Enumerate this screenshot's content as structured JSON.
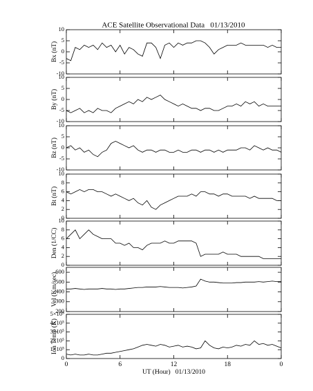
{
  "chart_data": [
    {
      "type": "line",
      "title": "ACE Satellite Observational Data   01/13/2010",
      "ylabel": "Bx (nT)",
      "color": "#000000",
      "xlim": [
        0,
        24
      ],
      "ylim": [
        -10,
        10
      ],
      "yticks": [
        10,
        5,
        0,
        -5,
        -10
      ],
      "x": [
        0,
        0.5,
        1,
        1.5,
        2,
        2.5,
        3,
        3.5,
        4,
        4.5,
        5,
        5.5,
        6,
        6.5,
        7,
        7.5,
        8,
        8.5,
        9,
        9.5,
        10,
        10.5,
        11,
        11.5,
        12,
        12.5,
        13,
        13.5,
        14,
        14.5,
        15,
        15.5,
        16,
        16.5,
        17,
        17.5,
        18,
        18.5,
        19,
        19.5,
        20,
        20.5,
        21,
        21.5,
        22,
        22.5,
        23,
        23.5,
        24
      ],
      "values": [
        -3,
        -4,
        2,
        1,
        3,
        2,
        3,
        1,
        4,
        2,
        3,
        0,
        3,
        -1,
        2,
        1,
        -1,
        -2,
        4,
        4,
        2,
        -3,
        3,
        4,
        2,
        4,
        3,
        4,
        4,
        5,
        5,
        4,
        2,
        -1,
        1,
        2,
        3,
        3,
        3,
        4,
        3,
        3,
        3,
        3,
        3,
        2,
        3,
        2,
        2
      ]
    },
    {
      "type": "line",
      "ylabel": "By (nT)",
      "color": "#000000",
      "xlim": [
        0,
        24
      ],
      "ylim": [
        -10,
        10
      ],
      "yticks": [
        10,
        5,
        0,
        -5,
        -10
      ],
      "x": [
        0,
        0.5,
        1,
        1.5,
        2,
        2.5,
        3,
        3.5,
        4,
        4.5,
        5,
        5.5,
        6,
        6.5,
        7,
        7.5,
        8,
        8.5,
        9,
        9.5,
        10,
        10.5,
        11,
        11.5,
        12,
        12.5,
        13,
        13.5,
        14,
        14.5,
        15,
        15.5,
        16,
        16.5,
        17,
        17.5,
        18,
        18.5,
        19,
        19.5,
        20,
        20.5,
        21,
        21.5,
        22,
        22.5,
        23,
        23.5,
        24
      ],
      "values": [
        -5,
        -6,
        -5,
        -4,
        -6,
        -5,
        -6,
        -4,
        -5,
        -5,
        -6,
        -4,
        -3,
        -2,
        -1,
        -2,
        0,
        -1,
        1,
        0,
        1,
        2,
        0,
        -1,
        -2,
        -3,
        -2,
        -3,
        -4,
        -4,
        -5,
        -4,
        -4,
        -5,
        -5,
        -4,
        -3,
        -3,
        -2,
        -3,
        -1,
        -2,
        -1,
        -3,
        -2,
        -3,
        -3,
        -3,
        -3
      ]
    },
    {
      "type": "line",
      "ylabel": "Bz (nT)",
      "color": "#000000",
      "xlim": [
        0,
        24
      ],
      "ylim": [
        -10,
        10
      ],
      "yticks": [
        10,
        5,
        0,
        -5,
        -10
      ],
      "x": [
        0,
        0.5,
        1,
        1.5,
        2,
        2.5,
        3,
        3.5,
        4,
        4.5,
        5,
        5.5,
        6,
        6.5,
        7,
        7.5,
        8,
        8.5,
        9,
        9.5,
        10,
        10.5,
        11,
        11.5,
        12,
        12.5,
        13,
        13.5,
        14,
        14.5,
        15,
        15.5,
        16,
        16.5,
        17,
        17.5,
        18,
        18.5,
        19,
        19.5,
        20,
        20.5,
        21,
        21.5,
        22,
        22.5,
        23,
        23.5,
        24
      ],
      "values": [
        0,
        1,
        -1,
        0,
        -2,
        -1,
        -3,
        -4,
        -2,
        -1,
        2,
        3,
        2,
        1,
        0,
        1,
        -1,
        -2,
        -1,
        -1,
        -2,
        -1,
        -1,
        -2,
        -2,
        -1,
        -2,
        -2,
        -1,
        -1,
        -2,
        -1,
        -1,
        -2,
        -1,
        -2,
        -1,
        -1,
        -1,
        0,
        0,
        -1,
        1,
        0,
        -1,
        0,
        -1,
        -1,
        -2
      ]
    },
    {
      "type": "line",
      "ylabel": "Bt (nT)",
      "color": "#000000",
      "xlim": [
        0,
        24
      ],
      "ylim": [
        0,
        10
      ],
      "yticks": [
        10,
        8,
        6,
        4,
        2,
        0
      ],
      "x": [
        0,
        0.5,
        1,
        1.5,
        2,
        2.5,
        3,
        3.5,
        4,
        4.5,
        5,
        5.5,
        6,
        6.5,
        7,
        7.5,
        8,
        8.5,
        9,
        9.5,
        10,
        10.5,
        11,
        11.5,
        12,
        12.5,
        13,
        13.5,
        14,
        14.5,
        15,
        15.5,
        16,
        16.5,
        17,
        17.5,
        18,
        18.5,
        19,
        19.5,
        20,
        20.5,
        21,
        21.5,
        22,
        22.5,
        23,
        23.5,
        24
      ],
      "values": [
        6,
        5.5,
        6,
        6.5,
        6,
        6.5,
        6.5,
        6,
        6,
        5.5,
        5,
        5.5,
        5,
        4.5,
        4,
        4.5,
        3.5,
        3,
        4,
        2.5,
        2,
        3,
        3.5,
        4,
        4.5,
        5,
        5,
        5,
        5.5,
        5,
        6,
        6,
        5.5,
        5.5,
        5,
        5.5,
        5.5,
        5,
        5,
        5,
        5,
        4.5,
        5,
        4.5,
        4.5,
        4.5,
        4.5,
        4,
        4
      ]
    },
    {
      "type": "line",
      "ylabel": "Den (1/CC)",
      "color": "#000000",
      "xlim": [
        0,
        24
      ],
      "ylim": [
        0,
        10
      ],
      "yticks": [
        10,
        8,
        6,
        4,
        2,
        0
      ],
      "x": [
        0,
        0.5,
        1,
        1.5,
        2,
        2.5,
        3,
        3.5,
        4,
        4.5,
        5,
        5.5,
        6,
        6.5,
        7,
        7.5,
        8,
        8.5,
        9,
        9.5,
        10,
        10.5,
        11,
        11.5,
        12,
        12.5,
        13,
        13.5,
        14,
        14.5,
        15,
        15.5,
        16,
        16.5,
        17,
        17.5,
        18,
        18.5,
        19,
        19.5,
        20,
        20.5,
        21,
        21.5,
        22,
        22.5,
        23,
        23.5,
        24
      ],
      "values": [
        6,
        7,
        8,
        6,
        7,
        8,
        7,
        6.5,
        6,
        6,
        6,
        5,
        5,
        4.5,
        5,
        4,
        4,
        3.5,
        4.5,
        5,
        5,
        5,
        5.5,
        5,
        5,
        5.5,
        5.5,
        5.5,
        5.5,
        5,
        2,
        2.5,
        2.5,
        2.5,
        2.5,
        3,
        2.5,
        2.5,
        2.5,
        2,
        2,
        2,
        2,
        2,
        1.5,
        1.5,
        1.5,
        1.5,
        1.5
      ]
    },
    {
      "type": "line",
      "ylabel": "Vel (Km/sec)",
      "color": "#000000",
      "xlim": [
        0,
        24
      ],
      "ylim": [
        200,
        650
      ],
      "yticks": [
        600,
        500,
        400,
        300,
        200
      ],
      "x": [
        0,
        0.5,
        1,
        1.5,
        2,
        2.5,
        3,
        3.5,
        4,
        4.5,
        5,
        5.5,
        6,
        6.5,
        7,
        7.5,
        8,
        8.5,
        9,
        9.5,
        10,
        10.5,
        11,
        11.5,
        12,
        12.5,
        13,
        13.5,
        14,
        14.5,
        15,
        15.5,
        16,
        16.5,
        17,
        17.5,
        18,
        18.5,
        19,
        19.5,
        20,
        20.5,
        21,
        21.5,
        22,
        22.5,
        23,
        23.5,
        24
      ],
      "values": [
        430,
        430,
        435,
        430,
        425,
        430,
        430,
        430,
        435,
        430,
        430,
        425,
        430,
        430,
        435,
        440,
        445,
        445,
        450,
        450,
        450,
        455,
        450,
        445,
        445,
        445,
        440,
        445,
        450,
        460,
        530,
        510,
        500,
        500,
        495,
        490,
        490,
        490,
        495,
        495,
        500,
        500,
        500,
        505,
        500,
        505,
        510,
        505,
        505
      ]
    },
    {
      "type": "line",
      "ylabel": "Ion Temp (K)",
      "xlabel": "UT (Hour)   01/13/2010",
      "color": "#000000",
      "xlim": [
        0,
        24
      ],
      "xticks": [
        0,
        6,
        12,
        18,
        {
          "value": 24,
          "label": "0"
        }
      ],
      "ylim": [
        0,
        500000
      ],
      "yticks": [
        {
          "value": 500000,
          "label": "5×10⁵"
        },
        {
          "value": 400000,
          "label": "4×10⁵"
        },
        {
          "value": 300000,
          "label": "3×10⁵"
        },
        {
          "value": 200000,
          "label": "2×10⁵"
        },
        {
          "value": 100000,
          "label": "1×10⁵"
        },
        0
      ],
      "x": [
        0,
        0.5,
        1,
        1.5,
        2,
        2.5,
        3,
        3.5,
        4,
        4.5,
        5,
        5.5,
        6,
        6.5,
        7,
        7.5,
        8,
        8.5,
        9,
        9.5,
        10,
        10.5,
        11,
        11.5,
        12,
        12.5,
        13,
        13.5,
        14,
        14.5,
        15,
        15.5,
        16,
        16.5,
        17,
        17.5,
        18,
        18.5,
        19,
        19.5,
        20,
        20.5,
        21,
        21.5,
        22,
        22.5,
        23,
        23.5,
        24
      ],
      "values": [
        50000,
        40000,
        50000,
        40000,
        40000,
        50000,
        40000,
        40000,
        50000,
        60000,
        60000,
        70000,
        80000,
        90000,
        100000,
        110000,
        130000,
        150000,
        160000,
        150000,
        140000,
        160000,
        150000,
        130000,
        140000,
        150000,
        130000,
        140000,
        130000,
        110000,
        120000,
        200000,
        150000,
        120000,
        110000,
        130000,
        120000,
        130000,
        150000,
        140000,
        160000,
        150000,
        200000,
        160000,
        170000,
        150000,
        160000,
        140000,
        120000
      ]
    }
  ]
}
